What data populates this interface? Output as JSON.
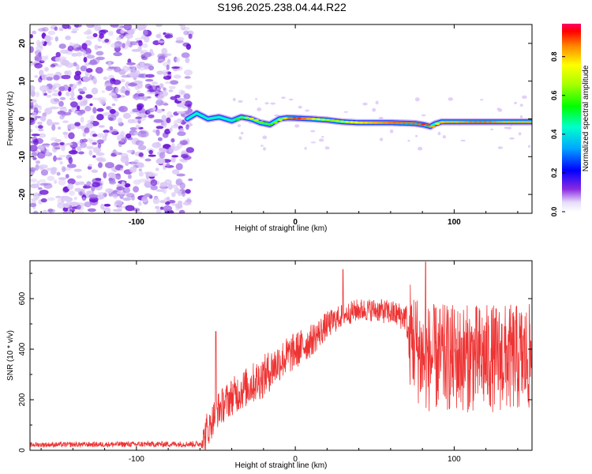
{
  "title": "S196.2025.238.04.44.R22",
  "colors": {
    "signal": "#ee3333",
    "axis": "#000000",
    "noise_light": "#d9c6f5",
    "noise_mid": "#a77ce8",
    "noise_dark": "#6a12d6"
  },
  "chart_data": [
    {
      "type": "heatmap",
      "name": "spectrogram",
      "xlabel": "Height of straight line (km)",
      "ylabel": "Frequency (Hz)",
      "xlim": [
        -167,
        149
      ],
      "ylim": [
        -25,
        25
      ],
      "x_ticks": [
        -100,
        0,
        100
      ],
      "y_ticks": [
        -20,
        -10,
        0,
        10,
        20
      ],
      "x_tick_labels": [
        "-100",
        "0",
        "100"
      ],
      "y_tick_labels": [
        "-20",
        "-10",
        "0",
        "10",
        "20"
      ],
      "colorbar": {
        "label": "Normalized spectral amplitude",
        "range": [
          0,
          0.97
        ],
        "ticks": [
          0,
          0.2,
          0.4,
          0.6,
          0.8
        ],
        "tick_labels": [
          "0.0",
          "0.2",
          "0.4",
          "0.6",
          "0.8"
        ]
      },
      "noise_region_x": [
        -167,
        -68
      ],
      "ridge": {
        "x": [
          -68,
          -62,
          -55,
          -48,
          -40,
          -34,
          -28,
          -22,
          -16,
          -10,
          -5,
          0,
          10,
          20,
          30,
          40,
          60,
          75,
          80,
          85,
          88,
          92,
          100,
          110,
          120,
          130,
          149
        ],
        "f": [
          0.0,
          1.5,
          0.0,
          0.5,
          -0.5,
          0.5,
          0.0,
          -1.0,
          -1.5,
          0.0,
          0.3,
          0.2,
          0.0,
          -0.3,
          -0.8,
          -1.0,
          -1.0,
          -1.2,
          -1.5,
          -2.0,
          -1.3,
          -0.8,
          -0.8,
          -0.8,
          -0.8,
          -0.8,
          -0.8
        ],
        "amp": [
          0.35,
          0.45,
          0.45,
          0.5,
          0.55,
          0.65,
          0.75,
          0.6,
          0.6,
          0.75,
          0.9,
          0.95,
          0.8,
          0.65,
          0.72,
          0.8,
          0.9,
          0.9,
          0.95,
          0.85,
          0.8,
          0.85,
          0.85,
          0.9,
          0.9,
          0.85,
          0.85
        ]
      }
    },
    {
      "type": "line",
      "name": "snr",
      "xlabel": "Height of straight line (km)",
      "ylabel": "SNR (10 * v/v)",
      "xlim": [
        -167,
        149
      ],
      "ylim": [
        0,
        750
      ],
      "x_ticks": [
        -100,
        0,
        100
      ],
      "y_ticks": [
        0,
        200,
        400,
        600
      ],
      "x_tick_labels": [
        "-100",
        "0",
        "100"
      ],
      "y_tick_labels": [
        "0",
        "200",
        "400",
        "600"
      ],
      "envelope": {
        "x": [
          -167,
          -60,
          -55,
          -50,
          -40,
          -30,
          -20,
          -10,
          0,
          10,
          20,
          30,
          40,
          50,
          60,
          70,
          72,
          80,
          100,
          120,
          140,
          149
        ],
        "base": [
          22,
          25,
          80,
          160,
          220,
          260,
          300,
          360,
          400,
          440,
          500,
          540,
          560,
          560,
          550,
          530,
          400,
          300,
          300,
          300,
          300,
          300
        ],
        "spread": [
          12,
          15,
          120,
          140,
          150,
          160,
          170,
          160,
          150,
          130,
          110,
          90,
          90,
          90,
          100,
          110,
          330,
          330,
          330,
          330,
          330,
          330
        ]
      },
      "peaks": [
        {
          "x": -50,
          "y": 470
        },
        {
          "x": 82,
          "y": 745
        },
        {
          "x": 30,
          "y": 715
        }
      ]
    }
  ]
}
